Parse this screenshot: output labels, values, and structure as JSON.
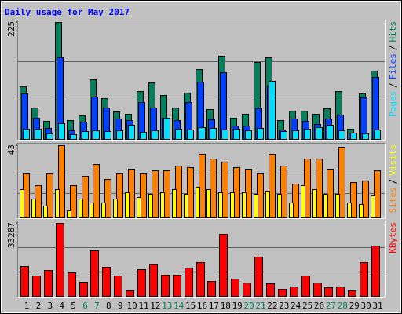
{
  "chart_data": {
    "type": "bar",
    "title": "Daily usage for May 2017",
    "categories": [
      "1",
      "2",
      "3",
      "4",
      "5",
      "6",
      "7",
      "8",
      "9",
      "10",
      "11",
      "12",
      "13",
      "14",
      "15",
      "16",
      "17",
      "18",
      "19",
      "20",
      "21",
      "22",
      "23",
      "24",
      "25",
      "26",
      "27",
      "28",
      "29",
      "30",
      "31"
    ],
    "category_colors": [
      "#000000",
      "#000000",
      "#000000",
      "#000000",
      "#000000",
      "#00805c",
      "#00805c",
      "#000000",
      "#000000",
      "#000000",
      "#000000",
      "#000000",
      "#00805c",
      "#00805c",
      "#000000",
      "#000000",
      "#000000",
      "#000000",
      "#000000",
      "#00805c",
      "#00805c",
      "#000000",
      "#000000",
      "#000000",
      "#000000",
      "#000000",
      "#00805c",
      "#00805c",
      "#000000",
      "#000000",
      "#000000"
    ],
    "separator": "/",
    "panels": [
      {
        "ylim": [
          0,
          225
        ],
        "yticks": [
          225
        ],
        "grid_lines": [
          75,
          150
        ],
        "series": [
          {
            "name": "Hits",
            "color": "#00805c",
            "values": [
              101,
              60,
              35,
              225,
              36,
              45,
              115,
              79,
              53,
              48,
              92,
              109,
              85,
              60,
              89,
              134,
              57,
              160,
              41,
              48,
              148,
              157,
              36,
              54,
              54,
              48,
              59,
              92,
              20,
              88,
              131
            ]
          },
          {
            "name": "Files",
            "color": "#0040ff",
            "values": [
              88,
              41,
              21,
              157,
              17,
              33,
              82,
              60,
              39,
              36,
              71,
              60,
              41,
              36,
              71,
              110,
              38,
              128,
              26,
              26,
              59,
              103,
              18,
              39,
              35,
              29,
              39,
              47,
              12,
              80,
              119
            ]
          },
          {
            "name": "Pages",
            "color": "#00e0ff",
            "values": [
              20,
              20,
              11,
              30,
              9,
              15,
              17,
              15,
              17,
              27,
              14,
              17,
              41,
              20,
              18,
              23,
              21,
              18,
              20,
              17,
              21,
              112,
              15,
              17,
              20,
              23,
              27,
              17,
              12,
              11,
              18
            ]
          }
        ]
      },
      {
        "ylim": [
          0,
          43
        ],
        "yticks": [
          43
        ],
        "grid_lines": [
          14.3,
          28.7
        ],
        "series": [
          {
            "name": "Sites",
            "color": "#ff8000",
            "values": [
              26,
              19,
              26,
              43,
              19,
              25,
              32,
              23,
              26,
              29,
              26,
              28,
              28,
              31,
              30,
              38,
              35,
              33,
              30,
              29,
              26,
              38,
              31,
              20,
              35,
              35,
              29,
              42,
              21,
              22,
              28
            ]
          },
          {
            "name": "Visits",
            "color": "#ffff00",
            "values": [
              17,
              11,
              7,
              17,
              4,
              11,
              9,
              9,
              11,
              15,
              12,
              14,
              15,
              17,
              14,
              18,
              17,
              15,
              15,
              15,
              14,
              16,
              14,
              9,
              19,
              17,
              14,
              14,
              9,
              8,
              13
            ]
          }
        ]
      },
      {
        "ylim": [
          0,
          33287
        ],
        "yticks": [
          33287
        ],
        "grid_lines": [
          11096,
          22191
        ],
        "series": [
          {
            "name": "KBytes",
            "color": "#ff0000",
            "values": [
              13535,
              9145,
              11705,
              33287,
              10608,
              6584,
              20851,
              13169,
              9145,
              2561,
              12071,
              14632,
              9511,
              9511,
              12803,
              15364,
              6950,
              28167,
              8048,
              6219,
              17924,
              5853,
              3292,
              4390,
              9145,
              6219,
              4024,
              4390,
              2561,
              15364,
              23045
            ]
          }
        ]
      }
    ]
  }
}
